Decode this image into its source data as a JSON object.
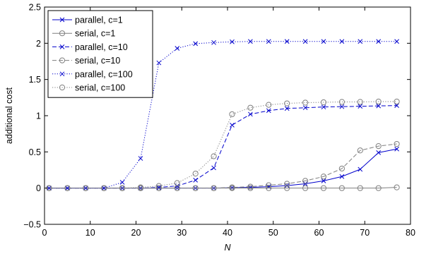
{
  "chart_data": {
    "type": "line",
    "title": "",
    "xlabel": "N",
    "ylabel": "additional cost",
    "xlim": [
      0,
      80
    ],
    "ylim": [
      -0.5,
      2.5
    ],
    "xticks": [
      "0",
      "10",
      "20",
      "30",
      "40",
      "50",
      "60",
      "70",
      "80"
    ],
    "yticks": [
      "−0.5",
      "0",
      "0.5",
      "1",
      "1.5",
      "2",
      "2.5"
    ],
    "grid": false,
    "legend_position": "top-left",
    "x": [
      1,
      5,
      9,
      13,
      17,
      21,
      25,
      29,
      33,
      37,
      41,
      45,
      49,
      53,
      57,
      61,
      65,
      69,
      73,
      77
    ],
    "series": [
      {
        "name": "parallel, c=1",
        "color": "#0000cc",
        "line_style": "solid",
        "marker": "x",
        "values": [
          0,
          0,
          0,
          0,
          0,
          0,
          0,
          0,
          0,
          0,
          0.005,
          0.01,
          0.02,
          0.035,
          0.06,
          0.1,
          0.16,
          0.26,
          0.49,
          0.54
        ]
      },
      {
        "name": "serial, c=1",
        "color": "#7f7f7f",
        "line_style": "solid",
        "marker": "o",
        "values": [
          0,
          0,
          0,
          0,
          0,
          0,
          0,
          0,
          0,
          0,
          0,
          0,
          0,
          0,
          0,
          0,
          0,
          0,
          0,
          0.01
        ]
      },
      {
        "name": "parallel, c=10",
        "color": "#0000cc",
        "line_style": "dashed",
        "marker": "x",
        "values": [
          0,
          0,
          0,
          0,
          0,
          0,
          0.01,
          0.03,
          0.11,
          0.28,
          0.87,
          1.02,
          1.07,
          1.1,
          1.11,
          1.12,
          1.125,
          1.13,
          1.135,
          1.14
        ]
      },
      {
        "name": "serial, c=10",
        "color": "#7f7f7f",
        "line_style": "dashed",
        "marker": "o",
        "values": [
          0,
          0,
          0,
          0,
          0,
          0,
          0,
          0,
          0,
          0,
          0.01,
          0.02,
          0.04,
          0.06,
          0.1,
          0.16,
          0.27,
          0.52,
          0.58,
          0.61
        ]
      },
      {
        "name": "parallel, c=100",
        "color": "#0000cc",
        "line_style": "dotted",
        "marker": "x",
        "values": [
          0,
          0,
          0,
          0,
          0.08,
          0.41,
          1.73,
          1.93,
          1.995,
          2.01,
          2.02,
          2.025,
          2.025,
          2.025,
          2.025,
          2.025,
          2.025,
          2.025,
          2.025,
          2.025
        ]
      },
      {
        "name": "serial, c=100",
        "color": "#7f7f7f",
        "line_style": "dotted",
        "marker": "o",
        "values": [
          0,
          0,
          0,
          0,
          0,
          0.01,
          0.03,
          0.07,
          0.2,
          0.44,
          1.02,
          1.11,
          1.15,
          1.17,
          1.18,
          1.185,
          1.19,
          1.19,
          1.195,
          1.195
        ]
      }
    ]
  }
}
